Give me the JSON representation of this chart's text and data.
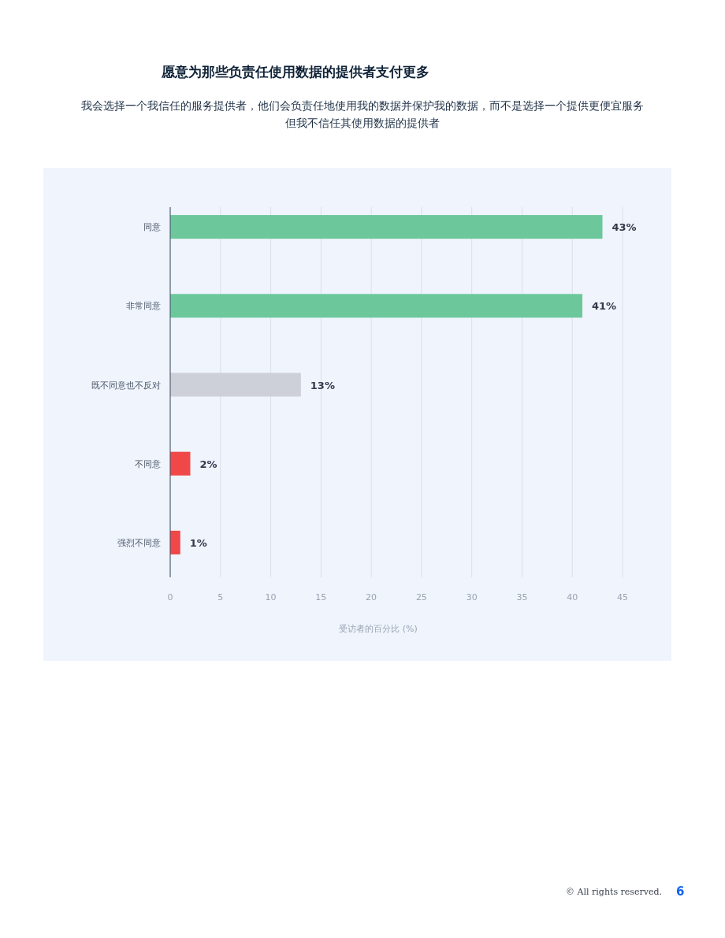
{
  "chart_data": {
    "type": "bar",
    "orientation": "horizontal",
    "title": "愿意为那些负责任使用数据的提供者支付更多",
    "subtitle": "我会选择一个我信任的服务提供者，他们会负责任地使用我的数据并保护我的数据，而不是选择一个提供更便宜服务但我不信任其使用数据的提供者",
    "xlabel": "受访者的百分比 (%)",
    "categories": [
      "同意",
      "非常同意",
      "既不同意也不反对",
      "不同意",
      "强烈不同意"
    ],
    "values": [
      43,
      41,
      13,
      2,
      1
    ],
    "colors": [
      "#6cc89b",
      "#6cc89b",
      "#cdd0d8",
      "#f04848",
      "#f04848"
    ],
    "value_labels": [
      "43%",
      "41%",
      "13%",
      "2%",
      "1%"
    ],
    "xlim": [
      0,
      45
    ],
    "xticks": [
      0,
      5,
      10,
      15,
      20,
      25,
      30,
      35,
      40,
      45
    ],
    "grid": "x",
    "annotations": [
      "© All rights reserved.",
      "6"
    ]
  }
}
